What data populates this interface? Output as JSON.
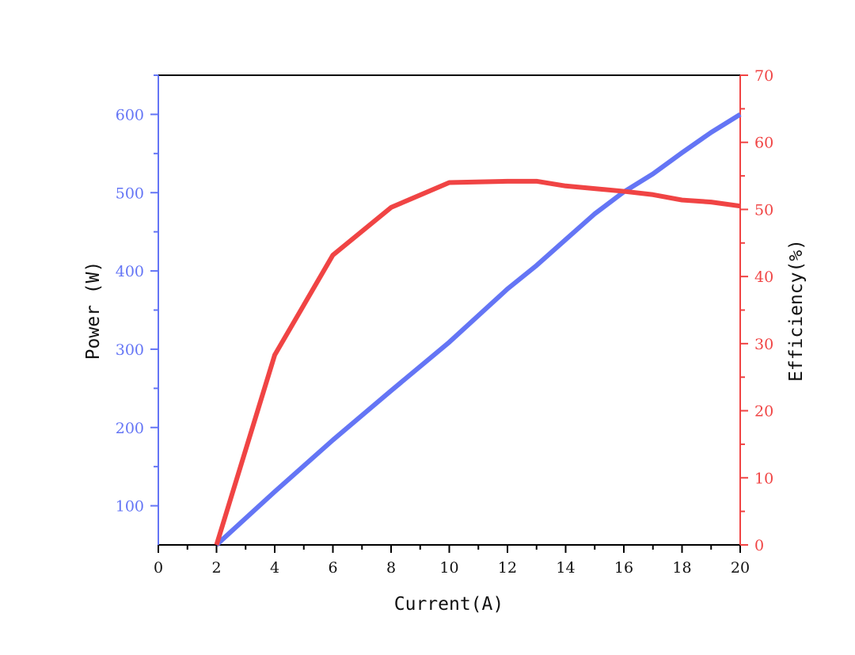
{
  "chart_data": {
    "type": "line",
    "title": "",
    "xlabel": "Current(A)",
    "ylabel": "Power (W)",
    "y2label": "Efficiency(%)",
    "xlim": [
      0,
      20
    ],
    "ylim": [
      50,
      650
    ],
    "y2lim": [
      0,
      70
    ],
    "x_ticks": [
      0,
      2,
      4,
      6,
      8,
      10,
      12,
      14,
      16,
      18,
      20
    ],
    "y_ticks": [
      100,
      200,
      300,
      400,
      500,
      600
    ],
    "y2_ticks": [
      0,
      10,
      20,
      30,
      40,
      50,
      60,
      70
    ],
    "grid": false,
    "legend": null,
    "series": [
      {
        "name": "Power (W)",
        "axis": "left",
        "color": "#6475f5",
        "x": [
          2,
          4,
          6,
          8,
          10,
          12,
          13,
          14,
          15,
          16,
          17,
          18,
          19,
          20
        ],
        "values": [
          50,
          118,
          184,
          247,
          309,
          377,
          407,
          440,
          473,
          501,
          524,
          551,
          577,
          600
        ]
      },
      {
        "name": "Efficiency (%)",
        "axis": "right",
        "color": "#f04444",
        "x": [
          2,
          4,
          6,
          8,
          10,
          12,
          13,
          14,
          16,
          17,
          18,
          19,
          20
        ],
        "values": [
          0,
          28.3,
          43.2,
          50.3,
          54.0,
          54.2,
          54.2,
          53.5,
          52.7,
          52.2,
          51.4,
          51.1,
          50.5
        ]
      }
    ]
  },
  "colors": {
    "left_axis": "#6475f5",
    "right_axis": "#f04444",
    "frame": "#000000"
  }
}
